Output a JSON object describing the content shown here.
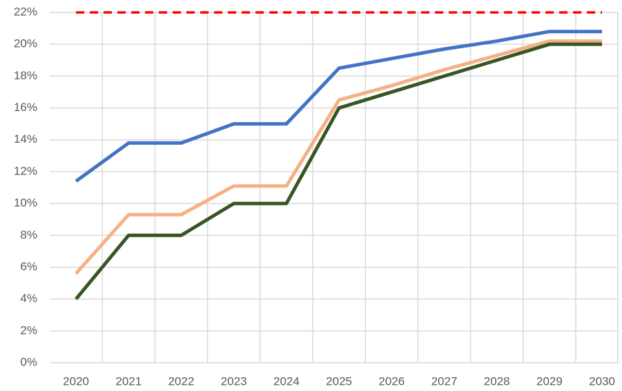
{
  "chart_data": {
    "type": "line",
    "categories": [
      "2020",
      "2021",
      "2022",
      "2023",
      "2024",
      "2025",
      "2026",
      "2027",
      "2028",
      "2029",
      "2030"
    ],
    "series": [
      {
        "color": "#4472c4",
        "values": [
          11.4,
          13.8,
          13.8,
          15,
          15,
          18.5,
          19.1,
          19.7,
          20.2,
          20.8,
          20.8
        ]
      },
      {
        "color": "#f4b183",
        "values": [
          5.6,
          9.3,
          9.3,
          11.1,
          11.1,
          16.5,
          17.4,
          18.4,
          19.3,
          20.2,
          20.2
        ]
      },
      {
        "color": "#375623",
        "values": [
          4,
          8,
          8,
          10,
          10,
          16,
          17,
          18,
          19,
          20,
          20
        ]
      },
      {
        "color": "#ff0000",
        "dashed": true,
        "values": [
          22,
          22,
          22,
          22,
          22,
          22,
          22,
          22,
          22,
          22,
          22
        ]
      }
    ],
    "ylim": [
      0,
      22
    ],
    "yticks": [
      {
        "value": 0,
        "label": "0%"
      },
      {
        "value": 2,
        "label": "2%"
      },
      {
        "value": 4,
        "label": "4%"
      },
      {
        "value": 6,
        "label": "6%"
      },
      {
        "value": 8,
        "label": "8%"
      },
      {
        "value": 10,
        "label": "10%"
      },
      {
        "value": 12,
        "label": "12%"
      },
      {
        "value": 14,
        "label": "14%"
      },
      {
        "value": 16,
        "label": "16%"
      },
      {
        "value": 18,
        "label": "18%"
      },
      {
        "value": 20,
        "label": "20%"
      },
      {
        "value": 22,
        "label": "22%"
      }
    ],
    "grid": true
  }
}
